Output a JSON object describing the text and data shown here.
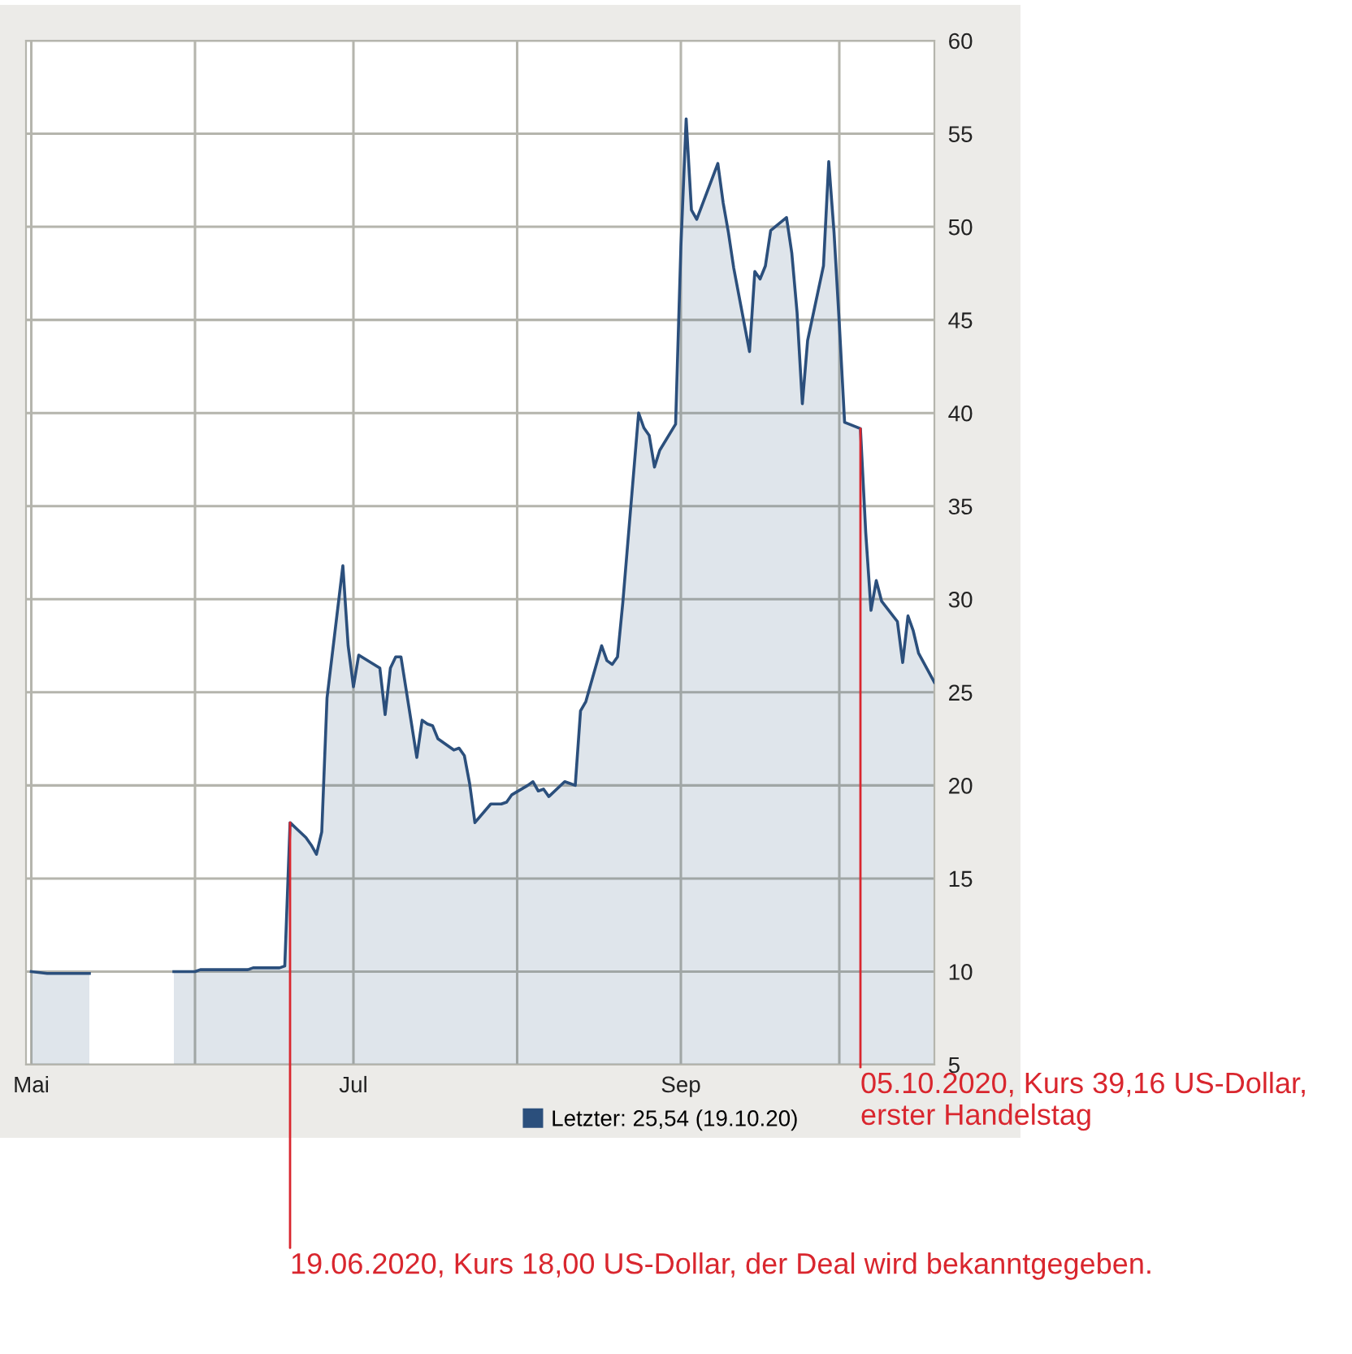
{
  "chart_data": {
    "type": "area",
    "xlim": [
      "2020-04-30",
      "2020-10-19"
    ],
    "ylim": [
      5,
      60
    ],
    "xticks": [
      {
        "value": "2020-05-01",
        "label": "Mai"
      },
      {
        "value": "2020-06-01",
        "label": null
      },
      {
        "value": "2020-07-01",
        "label": "Jul"
      },
      {
        "value": "2020-08-01",
        "label": null
      },
      {
        "value": "2020-09-01",
        "label": "Sep"
      },
      {
        "value": "2020-10-01",
        "label": null
      }
    ],
    "yticks": [
      5,
      10,
      15,
      20,
      25,
      30,
      35,
      40,
      45,
      50,
      55,
      60
    ],
    "grid": true,
    "legend": "bottom right",
    "series": [
      {
        "name": "Letzter: 25,54 (19.10.20)",
        "color": "#2b4f7c",
        "x": [
          "2020-05-01",
          "2020-05-04",
          "2020-05-05",
          "2020-05-06",
          "2020-05-07",
          "2020-05-08",
          "2020-05-11",
          "2020-05-12",
          "2020-05-20",
          "2020-05-28",
          "2020-05-29",
          "2020-06-01",
          "2020-06-02",
          "2020-06-03",
          "2020-06-04",
          "2020-06-05",
          "2020-06-08",
          "2020-06-09",
          "2020-06-10",
          "2020-06-11",
          "2020-06-12",
          "2020-06-15",
          "2020-06-16",
          "2020-06-17",
          "2020-06-18",
          "2020-06-19",
          "2020-06-22",
          "2020-06-23",
          "2020-06-24",
          "2020-06-25",
          "2020-06-26",
          "2020-06-29",
          "2020-06-30",
          "2020-07-01",
          "2020-07-02",
          "2020-07-06",
          "2020-07-07",
          "2020-07-08",
          "2020-07-09",
          "2020-07-10",
          "2020-07-13",
          "2020-07-14",
          "2020-07-15",
          "2020-07-16",
          "2020-07-17",
          "2020-07-20",
          "2020-07-21",
          "2020-07-22",
          "2020-07-23",
          "2020-07-24",
          "2020-07-27",
          "2020-07-28",
          "2020-07-29",
          "2020-07-30",
          "2020-07-31",
          "2020-08-03",
          "2020-08-04",
          "2020-08-05",
          "2020-08-06",
          "2020-08-07",
          "2020-08-10",
          "2020-08-11",
          "2020-08-12",
          "2020-08-13",
          "2020-08-14",
          "2020-08-17",
          "2020-08-18",
          "2020-08-19",
          "2020-08-20",
          "2020-08-21",
          "2020-08-24",
          "2020-08-25",
          "2020-08-26",
          "2020-08-27",
          "2020-08-28",
          "2020-08-31",
          "2020-09-01",
          "2020-09-02",
          "2020-09-03",
          "2020-09-04",
          "2020-09-08",
          "2020-09-09",
          "2020-09-10",
          "2020-09-11",
          "2020-09-14",
          "2020-09-15",
          "2020-09-16",
          "2020-09-17",
          "2020-09-18",
          "2020-09-21",
          "2020-09-22",
          "2020-09-23",
          "2020-09-24",
          "2020-09-25",
          "2020-09-28",
          "2020-09-29",
          "2020-09-30",
          "2020-10-01",
          "2020-10-02",
          "2020-10-05",
          "2020-10-06",
          "2020-10-07",
          "2020-10-08",
          "2020-10-09",
          "2020-10-12",
          "2020-10-13",
          "2020-10-14",
          "2020-10-15",
          "2020-10-16",
          "2020-10-19"
        ],
        "values": [
          10.0,
          9.9,
          9.9,
          9.9,
          9.9,
          9.9,
          9.9,
          9.9,
          null,
          10.0,
          10.0,
          10.0,
          10.1,
          10.1,
          10.1,
          10.1,
          10.1,
          10.1,
          10.1,
          10.1,
          10.2,
          10.2,
          10.2,
          10.2,
          10.3,
          18.0,
          17.2,
          16.8,
          16.3,
          17.5,
          24.7,
          31.8,
          27.5,
          25.3,
          27.0,
          26.3,
          23.8,
          26.3,
          26.9,
          26.9,
          21.5,
          23.5,
          23.3,
          23.2,
          22.5,
          21.9,
          22.0,
          21.6,
          20.1,
          18.0,
          19.0,
          19.0,
          19.0,
          19.1,
          19.5,
          20.0,
          20.2,
          19.7,
          19.8,
          19.4,
          20.2,
          20.1,
          20.0,
          24.0,
          24.5,
          27.5,
          26.7,
          26.5,
          26.9,
          29.8,
          40.0,
          39.2,
          38.8,
          37.1,
          38.0,
          39.4,
          48.9,
          55.8,
          50.9,
          50.4,
          53.4,
          51.3,
          49.7,
          47.8,
          43.3,
          47.6,
          47.2,
          47.9,
          49.8,
          50.5,
          48.6,
          45.4,
          40.5,
          43.9,
          47.9,
          53.5,
          49.7,
          44.8,
          39.5,
          39.16,
          33.6,
          29.4,
          31.0,
          29.9,
          28.8,
          26.6,
          29.1,
          28.3,
          27.1,
          25.54
        ]
      }
    ],
    "annotations": [
      {
        "text": "19.06.2020, Kurs 18,00 US-Dollar, der Deal wird bekanntgegeben.",
        "x": "2020-06-19",
        "y": 18.0
      },
      {
        "text": "05.10.2020, Kurs 39,16 US-Dollar,\nerster Handelstag",
        "x": "2020-10-05",
        "y": 39.16
      }
    ]
  }
}
